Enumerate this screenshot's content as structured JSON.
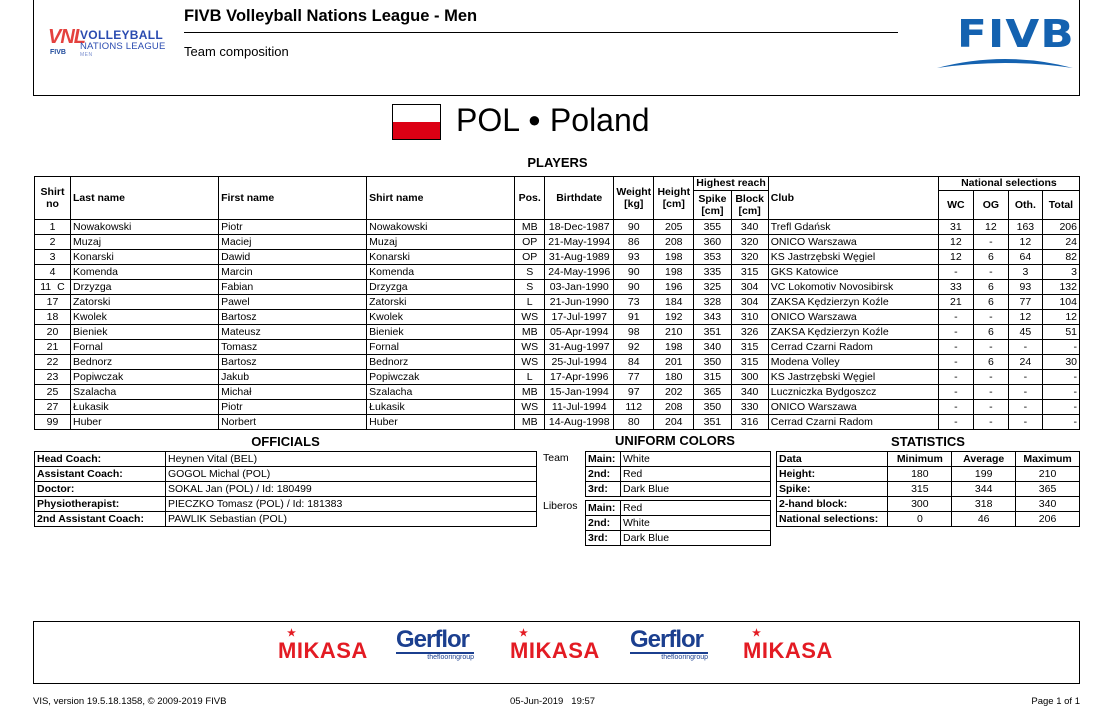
{
  "header": {
    "title": "FIVB Volleyball Nations League - Men",
    "subtitle": "Team composition",
    "left_logo": {
      "mark": "VNL",
      "fivb": "FIVB",
      "line1": "VOLLEYBALL",
      "line2": "NATIONS LEAGUE",
      "line3": "MEN"
    },
    "right_logo": "FIVB"
  },
  "team": {
    "code": "POL",
    "separator": "●",
    "name": "Poland",
    "flag_colors": {
      "top": "#ffffff",
      "bottom": "#dc0014"
    }
  },
  "players": {
    "title": "PLAYERS",
    "headers": {
      "shirt_no": "Shirt no",
      "last_name": "Last name",
      "first_name": "First name",
      "shirt_name": "Shirt name",
      "pos": "Pos.",
      "birthdate": "Birthdate",
      "weight": "Weight [kg]",
      "height": "Height [cm]",
      "highest_reach": "Highest reach",
      "spike": "Spike [cm]",
      "block": "Block [cm]",
      "club": "Club",
      "national_selections": "National selections",
      "wc": "WC",
      "og": "OG",
      "oth": "Oth.",
      "total": "Total"
    },
    "rows": [
      {
        "no": "1",
        "cap": "",
        "last": "Nowakowski",
        "first": "Piotr",
        "shirt": "Nowakowski",
        "pos": "MB",
        "birth": "18-Dec-1987",
        "weight": "90",
        "height": "205",
        "spike": "355",
        "block": "340",
        "club": "Trefl Gdańsk",
        "wc": "31",
        "og": "12",
        "oth": "163",
        "total": "206"
      },
      {
        "no": "2",
        "cap": "",
        "last": "Muzaj",
        "first": "Maciej",
        "shirt": "Muzaj",
        "pos": "OP",
        "birth": "21-May-1994",
        "weight": "86",
        "height": "208",
        "spike": "360",
        "block": "320",
        "club": "ONICO Warszawa",
        "wc": "12",
        "og": "-",
        "oth": "12",
        "total": "24"
      },
      {
        "no": "3",
        "cap": "",
        "last": "Konarski",
        "first": "Dawid",
        "shirt": "Konarski",
        "pos": "OP",
        "birth": "31-Aug-1989",
        "weight": "93",
        "height": "198",
        "spike": "353",
        "block": "320",
        "club": "KS Jastrzębski Węgiel",
        "wc": "12",
        "og": "6",
        "oth": "64",
        "total": "82"
      },
      {
        "no": "4",
        "cap": "",
        "last": "Komenda",
        "first": "Marcin",
        "shirt": "Komenda",
        "pos": "S",
        "birth": "24-May-1996",
        "weight": "90",
        "height": "198",
        "spike": "335",
        "block": "315",
        "club": "GKS Katowice",
        "wc": "-",
        "og": "-",
        "oth": "3",
        "total": "3"
      },
      {
        "no": "11",
        "cap": "C",
        "last": "Drzyzga",
        "first": "Fabian",
        "shirt": "Drzyzga",
        "pos": "S",
        "birth": "03-Jan-1990",
        "weight": "90",
        "height": "196",
        "spike": "325",
        "block": "304",
        "club": "VC Lokomotiv Novosibirsk",
        "wc": "33",
        "og": "6",
        "oth": "93",
        "total": "132"
      },
      {
        "no": "17",
        "cap": "",
        "last": "Zatorski",
        "first": "Pawel",
        "shirt": "Zatorski",
        "pos": "L",
        "birth": "21-Jun-1990",
        "weight": "73",
        "height": "184",
        "spike": "328",
        "block": "304",
        "club": "ZAKSA Kędzierzyn Koźle",
        "wc": "21",
        "og": "6",
        "oth": "77",
        "total": "104"
      },
      {
        "no": "18",
        "cap": "",
        "last": "Kwolek",
        "first": "Bartosz",
        "shirt": "Kwolek",
        "pos": "WS",
        "birth": "17-Jul-1997",
        "weight": "91",
        "height": "192",
        "spike": "343",
        "block": "310",
        "club": "ONICO Warszawa",
        "wc": "-",
        "og": "-",
        "oth": "12",
        "total": "12"
      },
      {
        "no": "20",
        "cap": "",
        "last": "Bieniek",
        "first": "Mateusz",
        "shirt": "Bieniek",
        "pos": "MB",
        "birth": "05-Apr-1994",
        "weight": "98",
        "height": "210",
        "spike": "351",
        "block": "326",
        "club": "ZAKSA Kędzierzyn Koźle",
        "wc": "-",
        "og": "6",
        "oth": "45",
        "total": "51"
      },
      {
        "no": "21",
        "cap": "",
        "last": "Fornal",
        "first": "Tomasz",
        "shirt": "Fornal",
        "pos": "WS",
        "birth": "31-Aug-1997",
        "weight": "92",
        "height": "198",
        "spike": "340",
        "block": "315",
        "club": "Cerrad Czarni Radom",
        "wc": "-",
        "og": "-",
        "oth": "-",
        "total": "-"
      },
      {
        "no": "22",
        "cap": "",
        "last": "Bednorz",
        "first": "Bartosz",
        "shirt": "Bednorz",
        "pos": "WS",
        "birth": "25-Jul-1994",
        "weight": "84",
        "height": "201",
        "spike": "350",
        "block": "315",
        "club": "Modena Volley",
        "wc": "-",
        "og": "6",
        "oth": "24",
        "total": "30"
      },
      {
        "no": "23",
        "cap": "",
        "last": "Popiwczak",
        "first": "Jakub",
        "shirt": "Popiwczak",
        "pos": "L",
        "birth": "17-Apr-1996",
        "weight": "77",
        "height": "180",
        "spike": "315",
        "block": "300",
        "club": "KS Jastrzębski Węgiel",
        "wc": "-",
        "og": "-",
        "oth": "-",
        "total": "-"
      },
      {
        "no": "25",
        "cap": "",
        "last": "Szalacha",
        "first": "Michał",
        "shirt": "Szalacha",
        "pos": "MB",
        "birth": "15-Jan-1994",
        "weight": "97",
        "height": "202",
        "spike": "365",
        "block": "340",
        "club": "Luczniczka Bydgoszcz",
        "wc": "-",
        "og": "-",
        "oth": "-",
        "total": "-"
      },
      {
        "no": "27",
        "cap": "",
        "last": "Łukasik",
        "first": "Piotr",
        "shirt": "Łukasik",
        "pos": "WS",
        "birth": "11-Jul-1994",
        "weight": "112",
        "height": "208",
        "spike": "350",
        "block": "330",
        "club": "ONICO Warszawa",
        "wc": "-",
        "og": "-",
        "oth": "-",
        "total": "-"
      },
      {
        "no": "99",
        "cap": "",
        "last": "Huber",
        "first": "Norbert",
        "shirt": "Huber",
        "pos": "MB",
        "birth": "14-Aug-1998",
        "weight": "80",
        "height": "204",
        "spike": "351",
        "block": "316",
        "club": "Cerrad Czarni Radom",
        "wc": "-",
        "og": "-",
        "oth": "-",
        "total": "-"
      }
    ]
  },
  "officials": {
    "title": "OFFICIALS",
    "rows": [
      {
        "role": "Head Coach:",
        "name": "Heynen Vital (BEL)"
      },
      {
        "role": "Assistant Coach:",
        "name": "GOGOL Michal (POL)"
      },
      {
        "role": "Doctor:",
        "name": "SOKAL Jan (POL) / Id: 180499"
      },
      {
        "role": "Physiotherapist:",
        "name": "PIECZKO Tomasz (POL) / Id: 181383"
      },
      {
        "role": "2nd Assistant Coach:",
        "name": "PAWLIK Sebastian (POL)"
      }
    ]
  },
  "uniform": {
    "title": "UNIFORM COLORS",
    "team_label": "Team",
    "liberos_label": "Liberos",
    "team": [
      {
        "label": "Main:",
        "value": "White"
      },
      {
        "label": "2nd:",
        "value": "Red"
      },
      {
        "label": "3rd:",
        "value": "Dark Blue"
      }
    ],
    "liberos": [
      {
        "label": "Main:",
        "value": "Red"
      },
      {
        "label": "2nd:",
        "value": "White"
      },
      {
        "label": "3rd:",
        "value": "Dark Blue"
      }
    ]
  },
  "statistics": {
    "title": "STATISTICS",
    "headers": {
      "data": "Data",
      "min": "Minimum",
      "avg": "Average",
      "max": "Maximum"
    },
    "rows": [
      {
        "label": "Height:",
        "min": "180",
        "avg": "199",
        "max": "210"
      },
      {
        "label": "Spike:",
        "min": "315",
        "avg": "344",
        "max": "365"
      },
      {
        "label": "2-hand block:",
        "min": "300",
        "avg": "318",
        "max": "340"
      },
      {
        "label": "National selections:",
        "min": "0",
        "avg": "46",
        "max": "206"
      }
    ]
  },
  "sponsors": {
    "mikasa": "MIKASA",
    "gerflor": "Gerflor",
    "gerflor_tagline": "theflooringroup",
    "mikasa_color": "#e31b23",
    "gerflor_color": "#1b3f8f"
  },
  "footer": {
    "version": "VIS, version 19.5.18.1358, © 2009-2019 FIVB",
    "date": "05-Jun-2019",
    "time": "19:57",
    "page": "Page 1 of 1"
  }
}
